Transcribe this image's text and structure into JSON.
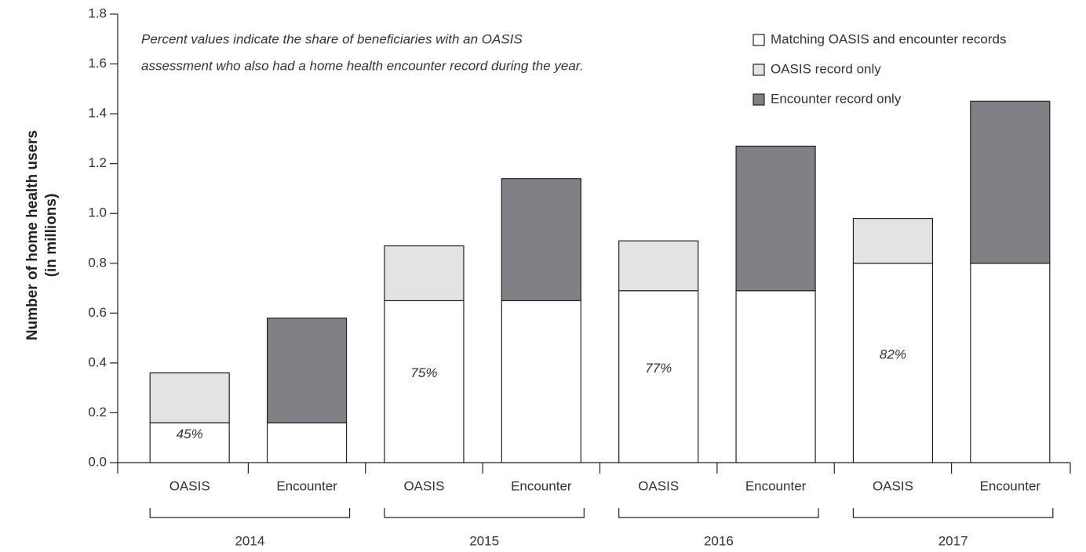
{
  "chart_data": {
    "type": "stacked_bar",
    "ylabel": [
      "Number of home health users",
      "(in millions)"
    ],
    "note": [
      "Percent values indicate the share of beneficiaries with an OASIS",
      "assessment who also had a home health encounter record during the year."
    ],
    "categories": [
      "OASIS",
      "Encounter",
      "OASIS",
      "Encounter",
      "OASIS",
      "Encounter",
      "OASIS",
      "Encounter"
    ],
    "groups": [
      "2014",
      "2015",
      "2016",
      "2017"
    ],
    "series": [
      {
        "name": "Matching OASIS and encounter records",
        "color": "#ffffff",
        "values": [
          0.16,
          0.16,
          0.65,
          0.65,
          0.69,
          0.69,
          0.8,
          0.8
        ]
      },
      {
        "name": "OASIS record only",
        "color": "#e2e3e4",
        "values": [
          0.2,
          null,
          0.22,
          null,
          0.2,
          null,
          0.18,
          null
        ]
      },
      {
        "name": "Encounter record only",
        "color": "#808184",
        "values": [
          null,
          0.42,
          null,
          0.49,
          null,
          0.58,
          null,
          0.65
        ]
      }
    ],
    "percent_labels": [
      "45%",
      null,
      "75%",
      null,
      "77%",
      null,
      "82%",
      null
    ],
    "ylim": [
      0,
      1.8
    ],
    "yticks": [
      {
        "value": 0,
        "label": "0.0"
      },
      0.2,
      0.4,
      0.6,
      0.8,
      {
        "value": 1,
        "label": "1.0"
      },
      1.2,
      1.4,
      1.6,
      1.8
    ],
    "legend": "upper right"
  }
}
